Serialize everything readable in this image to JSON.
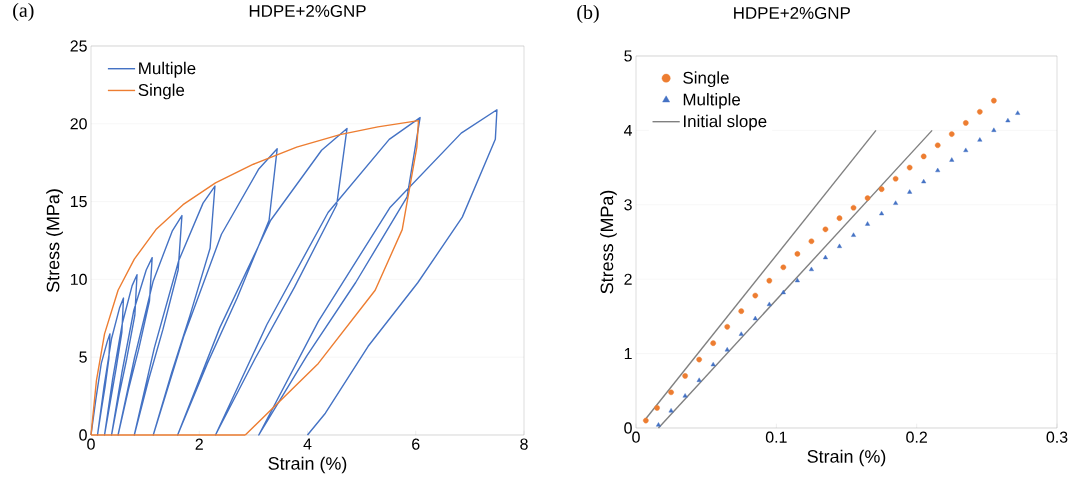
{
  "chart_data": [
    {
      "type": "line",
      "title": "HDPE+2%GNP",
      "xlabel": "Strain (%)",
      "ylabel": "Stress (MPa)",
      "annotations": [
        "(a)"
      ],
      "xlim": [
        0,
        8
      ],
      "xticks": [
        0,
        2,
        4,
        6,
        8
      ],
      "ylim": [
        0,
        25
      ],
      "yticks": [
        0,
        5,
        10,
        15,
        20,
        25
      ],
      "grid": "y",
      "legend": "top left",
      "line_style": "solid",
      "series": [
        {
          "name": "Multiple",
          "color": "#4472c4",
          "x": [
            0,
            0.09,
            0.19,
            0.3,
            0.35,
            0.33,
            0.26,
            0.19,
            0.12,
            0.24,
            0.38,
            0.53,
            0.6,
            0.57,
            0.46,
            0.36,
            0.25,
            0.4,
            0.58,
            0.76,
            0.85,
            0.81,
            0.66,
            0.52,
            0.38,
            0.57,
            0.79,
            1.02,
            1.13,
            1.08,
            0.88,
            0.69,
            0.5,
            0.8,
            1.15,
            1.5,
            1.68,
            1.61,
            1.33,
            1.06,
            0.8,
            1.17,
            1.62,
            2.07,
            2.29,
            2.2,
            1.83,
            1.49,
            1.15,
            1.72,
            2.41,
            3.1,
            3.44,
            3.29,
            2.7,
            2.15,
            1.6,
            2.38,
            3.32,
            4.26,
            4.73,
            4.54,
            3.76,
            3.03,
            2.3,
            3.25,
            4.38,
            5.51,
            6.08,
            5.84,
            4.89,
            3.99,
            3.1,
            4.2,
            5.52,
            6.84,
            7.5,
            7.47,
            6.86,
            6.04,
            5.12,
            4.33,
            4.0
          ],
          "values": [
            0,
            2.3,
            4.6,
            6.0,
            6.5,
            4.9,
            3.1,
            1.6,
            0,
            3.1,
            6.2,
            8.2,
            8.8,
            6.6,
            4.2,
            2.2,
            0,
            3.6,
            7.2,
            9.6,
            10.3,
            7.7,
            4.9,
            2.6,
            0,
            4.0,
            8.0,
            10.6,
            11.4,
            8.6,
            5.5,
            2.9,
            0,
            4.9,
            9.9,
            13.1,
            14.1,
            10.6,
            6.8,
            3.5,
            0,
            5.6,
            11.2,
            14.9,
            16.0,
            12.0,
            7.7,
            4.0,
            0,
            6.4,
            12.9,
            17.1,
            18.4,
            13.8,
            8.8,
            4.6,
            0,
            6.9,
            13.8,
            18.3,
            19.7,
            14.8,
            9.5,
            4.9,
            0,
            7.1,
            14.3,
            19.0,
            20.4,
            15.3,
            9.8,
            5.1,
            0,
            7.3,
            14.6,
            19.4,
            20.9,
            19.0,
            14.0,
            9.8,
            5.7,
            1.4,
            0
          ]
        },
        {
          "name": "Single",
          "color": "#ed7d31",
          "x": [
            0,
            0.1,
            0.25,
            0.5,
            0.8,
            1.2,
            1.7,
            2.3,
            3.0,
            3.8,
            4.6,
            5.3,
            6.05,
            6.02,
            5.75,
            5.25,
            4.2,
            2.85
          ],
          "values": [
            0,
            3.5,
            6.5,
            9.3,
            11.3,
            13.2,
            14.8,
            16.2,
            17.4,
            18.5,
            19.3,
            19.8,
            20.2,
            18.5,
            13.2,
            9.3,
            4.6,
            0
          ]
        },
        {
          "color": "#ed7d31",
          "x": [
            0,
            2.85
          ],
          "values": [
            0,
            0
          ]
        }
      ]
    },
    {
      "type": "scatter",
      "title": "HDPE+2%GNP",
      "xlabel": "Strain (%)",
      "ylabel": "Stress (MPa)",
      "annotations": [
        "(b)"
      ],
      "xlim": [
        0,
        0.3
      ],
      "xticks": [
        0,
        0.1,
        0.2,
        0.3
      ],
      "ylim": [
        0,
        5
      ],
      "yticks": [
        0,
        1,
        2,
        3,
        4,
        5
      ],
      "grid": "y",
      "legend": "top left",
      "series": [
        {
          "name": "Single",
          "color": "#ed7d31",
          "marker": "circle",
          "x": [
            0.007,
            0.015,
            0.025,
            0.035,
            0.045,
            0.055,
            0.065,
            0.075,
            0.085,
            0.095,
            0.105,
            0.115,
            0.125,
            0.135,
            0.145,
            0.155,
            0.165,
            0.175,
            0.185,
            0.195,
            0.205,
            0.215,
            0.225,
            0.235,
            0.245,
            0.255
          ],
          "values": [
            0.1,
            0.27,
            0.48,
            0.7,
            0.92,
            1.14,
            1.36,
            1.57,
            1.78,
            1.98,
            2.16,
            2.34,
            2.51,
            2.67,
            2.82,
            2.96,
            3.09,
            3.21,
            3.35,
            3.5,
            3.65,
            3.8,
            3.95,
            4.1,
            4.25,
            4.4
          ]
        },
        {
          "name": "Multiple",
          "color": "#4472c4",
          "marker": "triangle",
          "x": [
            0.016,
            0.025,
            0.035,
            0.045,
            0.055,
            0.065,
            0.075,
            0.085,
            0.095,
            0.105,
            0.115,
            0.125,
            0.135,
            0.145,
            0.155,
            0.165,
            0.175,
            0.185,
            0.195,
            0.205,
            0.215,
            0.225,
            0.235,
            0.245,
            0.255,
            0.265,
            0.272
          ],
          "values": [
            0.04,
            0.23,
            0.43,
            0.64,
            0.85,
            1.05,
            1.26,
            1.47,
            1.66,
            1.82,
            1.98,
            2.13,
            2.29,
            2.44,
            2.59,
            2.74,
            2.88,
            3.02,
            3.17,
            3.31,
            3.46,
            3.6,
            3.73,
            3.87,
            4.0,
            4.13,
            4.23
          ]
        },
        {
          "name": "Initial slope",
          "type": "line",
          "color": "#808080",
          "marker": "none",
          "x": [
            0.006,
            0.171
          ],
          "values": [
            0.1,
            4.0
          ]
        },
        {
          "type": "line",
          "color": "#808080",
          "marker": "none",
          "x": [
            0.016,
            0.211
          ],
          "values": [
            0.0,
            4.0
          ]
        }
      ]
    }
  ]
}
